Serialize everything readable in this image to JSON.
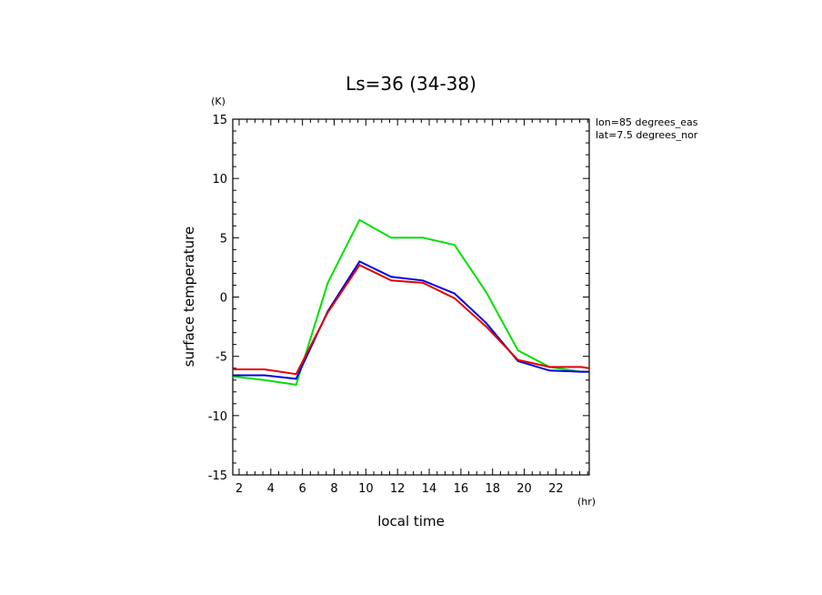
{
  "chart_data": {
    "type": "line",
    "title": "Ls=36 (34-38)",
    "xlabel": "local time",
    "ylabel": "surface temperature",
    "x_unit": "(hr)",
    "y_unit": "(K)",
    "annotations": [
      "lon=85 degrees_eas",
      "lat=7.5 degrees_nor"
    ],
    "xlim": [
      1.6,
      24.1
    ],
    "ylim": [
      -15,
      15
    ],
    "x_ticks": [
      2,
      4,
      6,
      8,
      10,
      12,
      14,
      16,
      18,
      20,
      22
    ],
    "x_tick_labels": [
      "2",
      "4",
      "6",
      "8",
      "10",
      "12",
      "14",
      "16",
      "18",
      "20",
      "22"
    ],
    "y_ticks": [
      -15,
      -10,
      -5,
      0,
      5,
      10,
      15
    ],
    "y_tick_labels": [
      "-15",
      "-10",
      "-5",
      "0",
      "5",
      "10",
      "15"
    ],
    "grid": false,
    "series": [
      {
        "color": "#00e000",
        "points": [
          [
            1.6,
            -6.7
          ],
          [
            3.6,
            -7.0
          ],
          [
            5.6,
            -7.4
          ],
          [
            7.6,
            1.2
          ],
          [
            9.6,
            6.5
          ],
          [
            11.6,
            5.0
          ],
          [
            13.6,
            5.0
          ],
          [
            15.6,
            4.4
          ],
          [
            17.6,
            0.4
          ],
          [
            19.6,
            -4.5
          ],
          [
            21.6,
            -5.9
          ],
          [
            23.6,
            -6.3
          ],
          [
            24.1,
            -6.3
          ]
        ]
      },
      {
        "color": "#0000e0",
        "points": [
          [
            1.6,
            -6.6
          ],
          [
            3.6,
            -6.6
          ],
          [
            5.6,
            -6.9
          ],
          [
            7.6,
            -1.2
          ],
          [
            9.6,
            3.0
          ],
          [
            11.6,
            1.7
          ],
          [
            13.6,
            1.4
          ],
          [
            15.6,
            0.3
          ],
          [
            17.6,
            -2.2
          ],
          [
            19.6,
            -5.4
          ],
          [
            21.6,
            -6.2
          ],
          [
            23.6,
            -6.3
          ],
          [
            24.1,
            -6.3
          ]
        ]
      },
      {
        "color": "#e00000",
        "points": [
          [
            1.6,
            -6.1
          ],
          [
            3.6,
            -6.1
          ],
          [
            5.6,
            -6.5
          ],
          [
            7.6,
            -1.3
          ],
          [
            9.6,
            2.7
          ],
          [
            11.6,
            1.4
          ],
          [
            13.6,
            1.2
          ],
          [
            15.6,
            -0.1
          ],
          [
            17.6,
            -2.5
          ],
          [
            19.6,
            -5.3
          ],
          [
            21.6,
            -5.9
          ],
          [
            23.6,
            -5.9
          ],
          [
            24.1,
            -6.0
          ]
        ]
      }
    ]
  }
}
